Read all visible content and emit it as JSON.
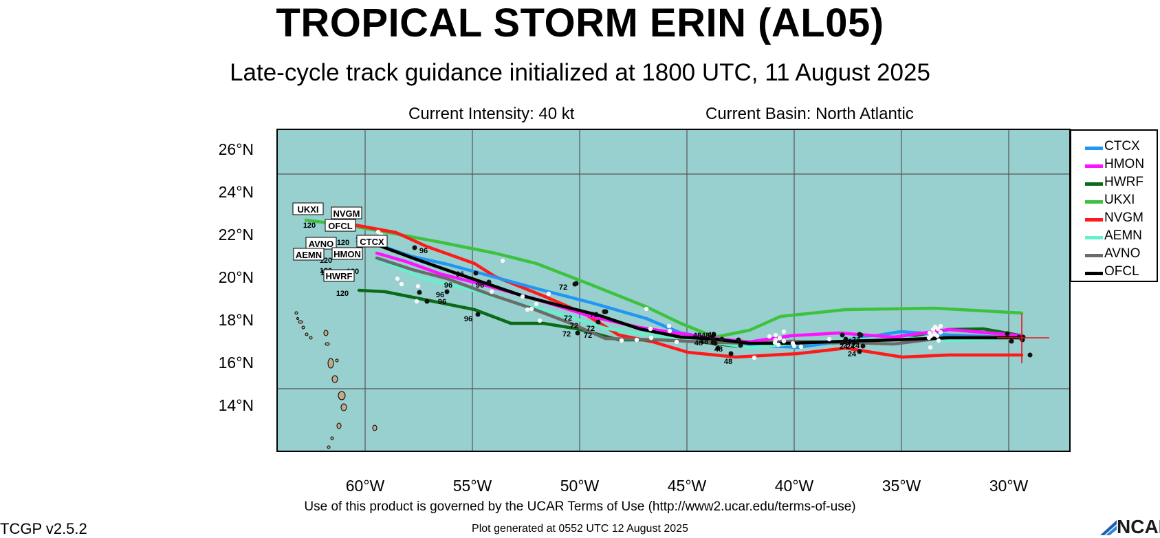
{
  "header": {
    "title": "TROPICAL STORM ERIN (AL05)",
    "subtitle": "Late-cycle track guidance initialized at 1800 UTC, 11 August 2025",
    "intensity": "Current Intensity: 40 kt",
    "basin": "Current Basin: North Atlantic"
  },
  "axes": {
    "lat_labels": [
      "26°N",
      "24°N",
      "22°N",
      "20°N",
      "18°N",
      "16°N",
      "14°N"
    ],
    "lon_labels": [
      "60°W",
      "55°W",
      "50°W",
      "45°W",
      "40°W",
      "35°W",
      "30°W"
    ]
  },
  "map_colors": {
    "ocean": "#98cfcf",
    "land": "#c4a889",
    "grid": "#555555",
    "storm_center": "#e8141b"
  },
  "legend": [
    {
      "label": "CTCX",
      "color": "#2196f3"
    },
    {
      "label": "HMON",
      "color": "#ff10ff"
    },
    {
      "label": "HWRF",
      "color": "#0a6b16"
    },
    {
      "label": "UKXI",
      "color": "#3ec23e"
    },
    {
      "label": "NVGM",
      "color": "#ff1a1a"
    },
    {
      "label": "AEMN",
      "color": "#66f0cc"
    },
    {
      "label": "AVNO",
      "color": "#6b6b6b"
    },
    {
      "label": "OFCL",
      "color": "#000000"
    }
  ],
  "track_labels": {
    "boxed": [
      "UKXI",
      "NVGM",
      "OFCL",
      "CTCX",
      "AVNO",
      "AEMN",
      "HMON",
      "HWRF"
    ],
    "hours": [
      "120",
      "96",
      "72",
      "48",
      "24"
    ]
  },
  "footer": {
    "terms": "Use of this product is governed by the UCAR Terms of Use (http://www2.ucar.edu/terms-of-use)",
    "version": "TCGP v2.5.2",
    "generated": "Plot generated at 0552 UTC   12 August 2025",
    "logo_text": "NCAR"
  }
}
